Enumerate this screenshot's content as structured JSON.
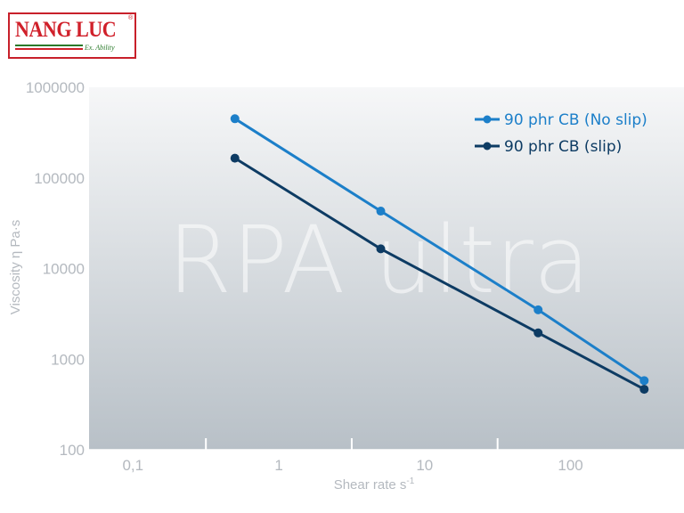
{
  "logo": {
    "main": "NANG LUC",
    "sub": "Ex. Ability",
    "reg": "®"
  },
  "watermark": "RPA ultra",
  "colors": {
    "no_slip": "#1c7fc9",
    "slip": "#0d3b63",
    "bg_top": "#f6f7f8",
    "bg_bottom": "#b8c0c7",
    "watermark": "#ffffff"
  },
  "chart_data": {
    "type": "line",
    "xscale": "log",
    "yscale": "log",
    "xlim": [
      0.05,
      600
    ],
    "ylim": [
      100,
      1000000
    ],
    "xlabel": "Shear rate s",
    "xlabel_sup": "-1",
    "ylabel": "Viscosity η Pa·s",
    "x_ticks": [
      {
        "value": 0.1,
        "label": "0,1"
      },
      {
        "value": 1,
        "label": "1"
      },
      {
        "value": 10,
        "label": "10"
      },
      {
        "value": 100,
        "label": "100"
      }
    ],
    "y_ticks": [
      {
        "value": 100,
        "label": "100"
      },
      {
        "value": 1000,
        "label": "1000"
      },
      {
        "value": 10000,
        "label": "10000"
      },
      {
        "value": 100000,
        "label": "100000"
      },
      {
        "value": 1000000,
        "label": "1000000"
      }
    ],
    "legend_position": "top-right",
    "series": [
      {
        "name": "90 phr CB (No slip)",
        "color": "#1c7fc9",
        "points": [
          [
            0.5,
            450000
          ],
          [
            5,
            43000
          ],
          [
            60,
            3500
          ],
          [
            320,
            580
          ]
        ]
      },
      {
        "name": "90 phr CB (slip)",
        "color": "#0d3b63",
        "points": [
          [
            0.5,
            165000
          ],
          [
            5,
            16500
          ],
          [
            60,
            1950
          ],
          [
            320,
            465
          ]
        ]
      }
    ]
  }
}
